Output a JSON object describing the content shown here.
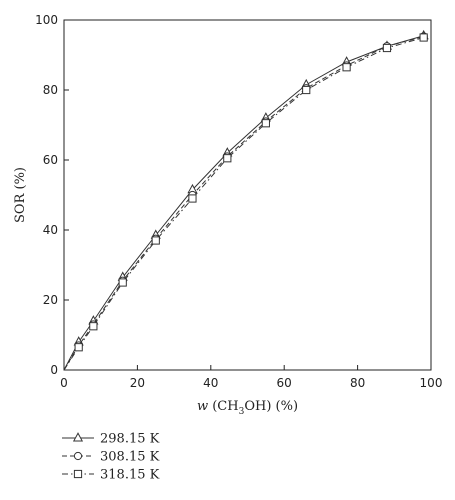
{
  "chart_data": {
    "type": "line",
    "xlabel": {
      "italic": "w",
      "prefix": " (CH",
      "sub": "3",
      "suffix": "OH) (%)"
    },
    "ylabel": "SOR (%)",
    "xlim": [
      0,
      100
    ],
    "ylim": [
      0,
      100
    ],
    "xticks": [
      0,
      20,
      40,
      60,
      80,
      100
    ],
    "yticks": [
      0,
      20,
      40,
      60,
      80,
      100
    ],
    "grid": false,
    "legend_position": "below",
    "series": [
      {
        "name": "298.15 K",
        "marker": "triangle",
        "dash": "solid",
        "x": [
          0,
          4,
          8,
          16,
          25,
          35,
          44.5,
          55,
          66,
          77,
          88,
          98
        ],
        "y": [
          0,
          8,
          14,
          26.5,
          38.5,
          51.5,
          62,
          72,
          81.5,
          88,
          92.5,
          95.5
        ]
      },
      {
        "name": "308.15 K",
        "marker": "circle",
        "dash": "dash",
        "x": [
          0,
          4,
          8,
          16,
          25,
          35,
          44.5,
          55,
          66,
          77,
          88,
          98
        ],
        "y": [
          0,
          7,
          13,
          25.5,
          37.5,
          50,
          61,
          71,
          80.5,
          87,
          92.5,
          95.3
        ]
      },
      {
        "name": "318.15 K",
        "marker": "square",
        "dash": "dashdot",
        "x": [
          0,
          4,
          8,
          16,
          25,
          35,
          44.5,
          55,
          66,
          77,
          88,
          98
        ],
        "y": [
          0,
          6.5,
          12.5,
          25,
          37,
          49,
          60.5,
          70.5,
          80,
          86.5,
          92,
          95
        ]
      }
    ]
  }
}
